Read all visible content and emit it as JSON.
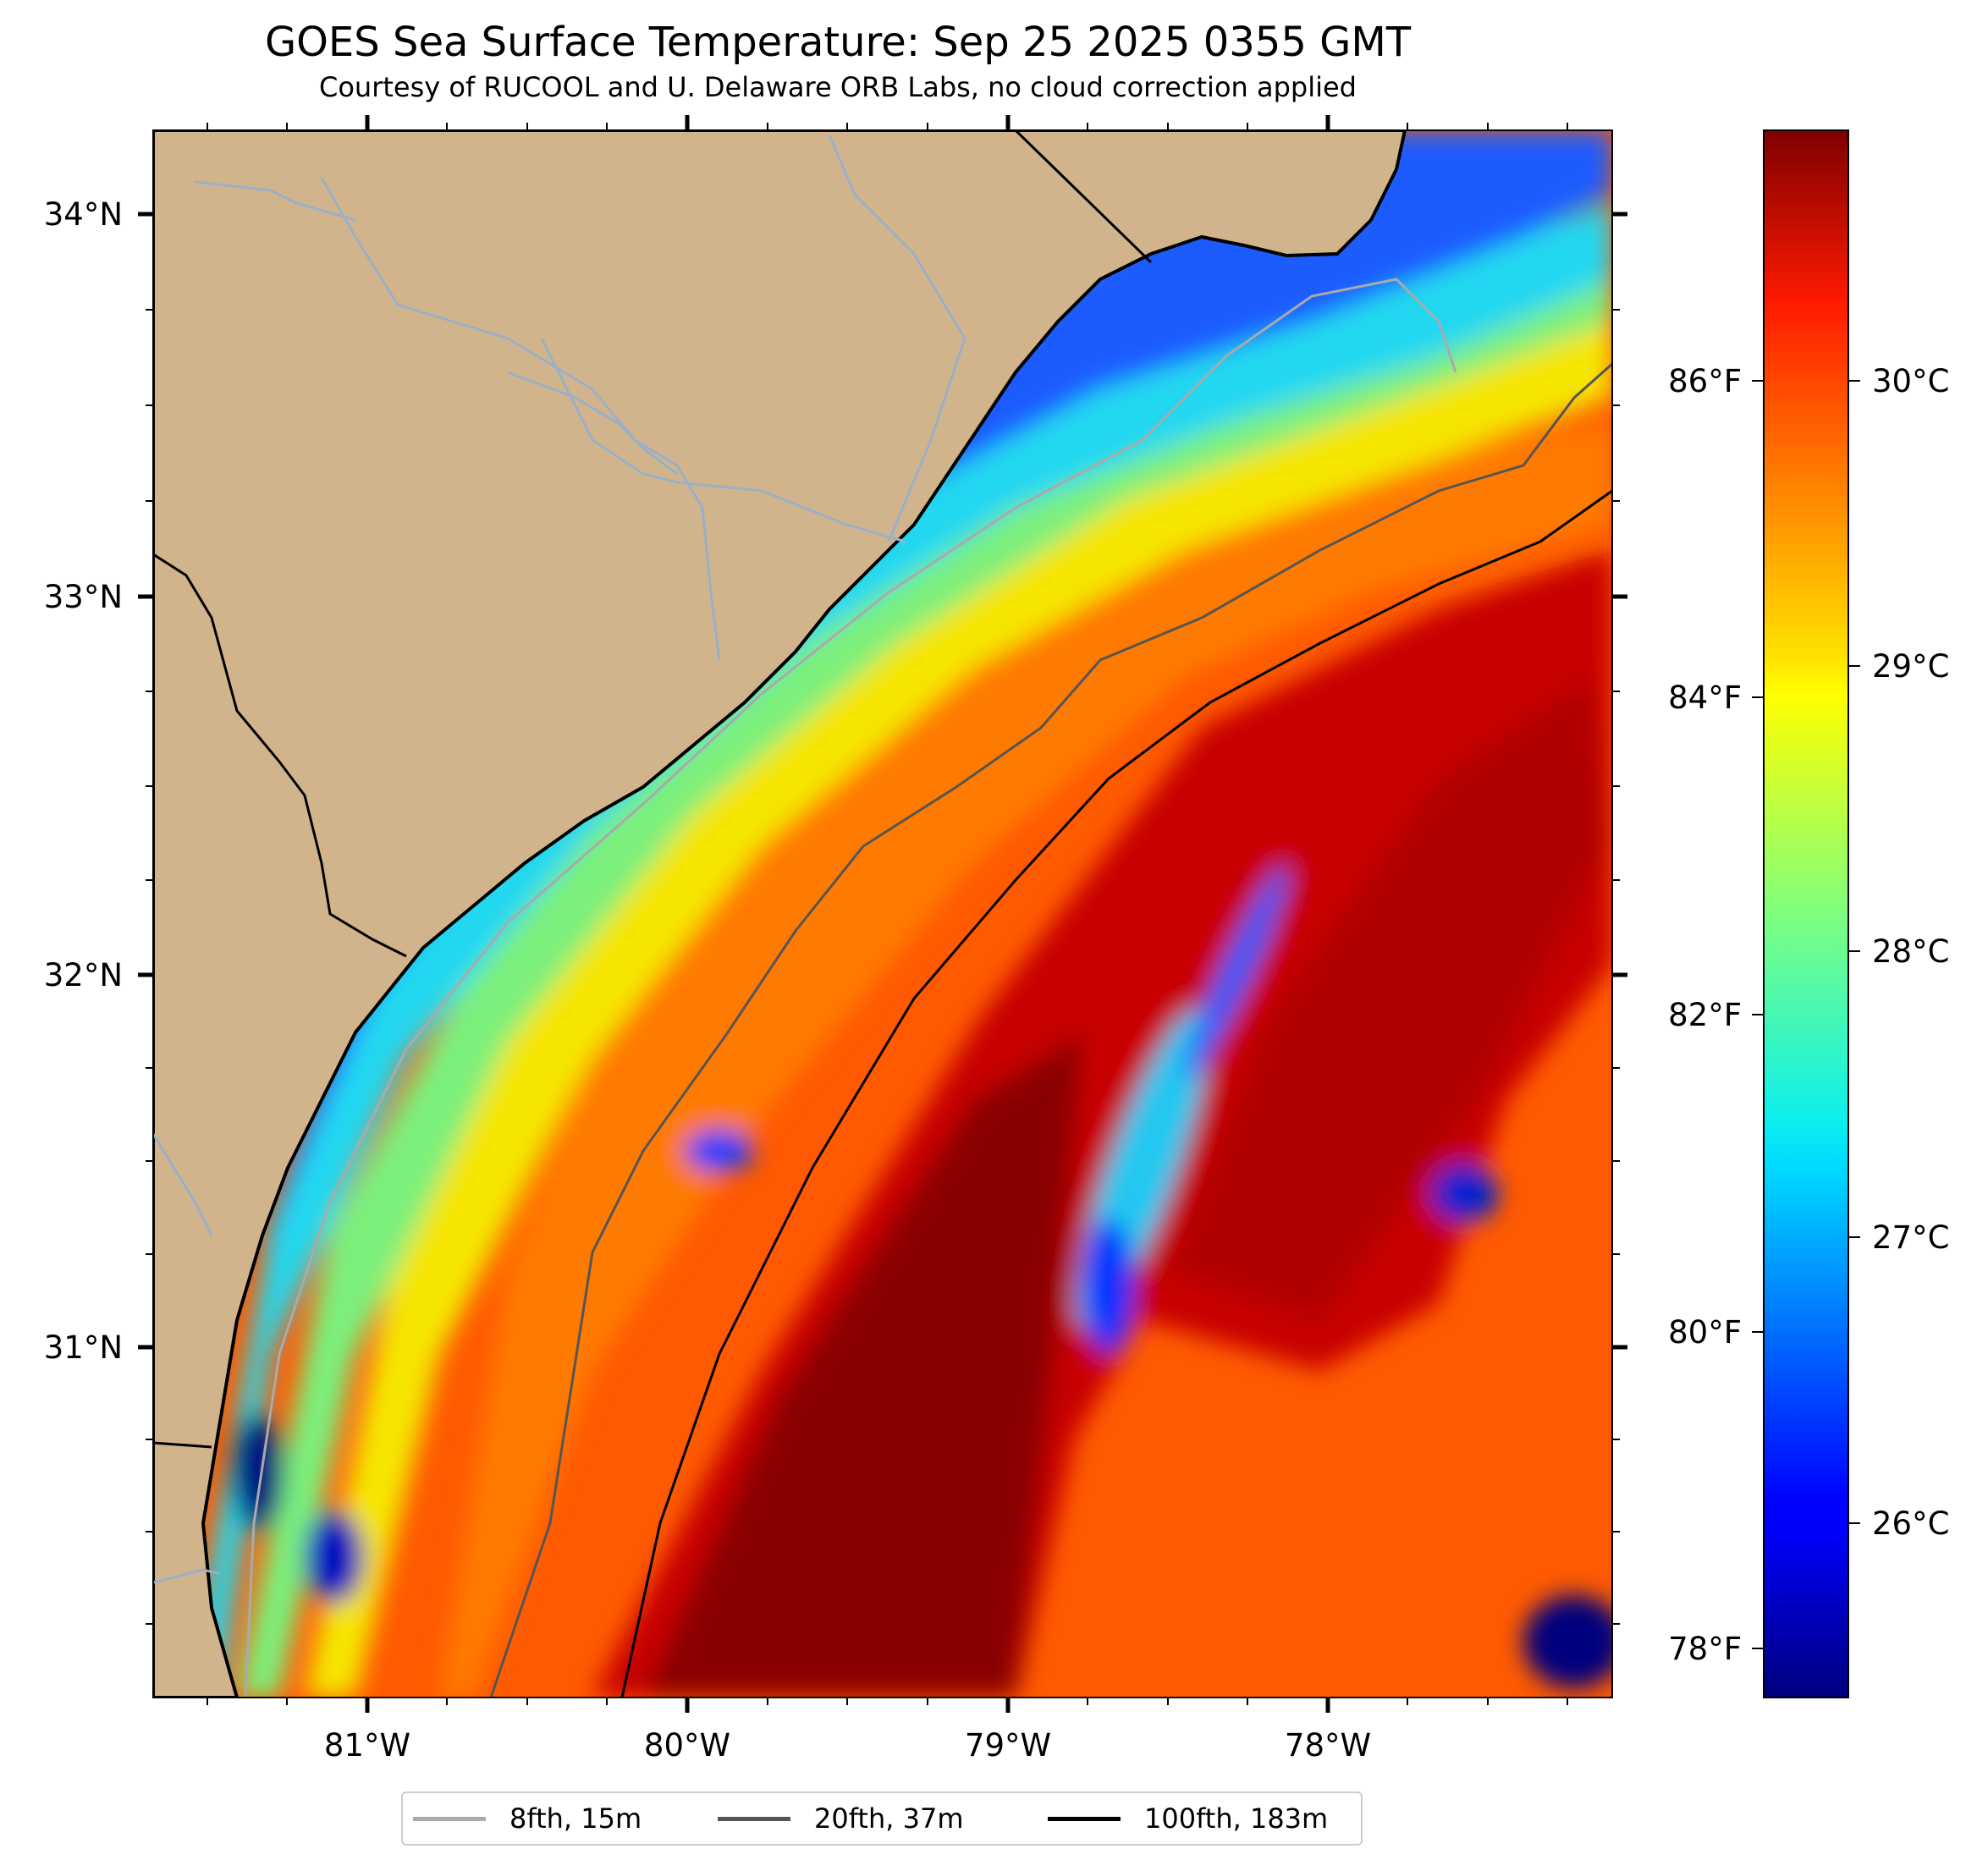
{
  "title": "GOES Sea Surface Temperature: Sep 25 2025 0355 GMT",
  "subtitle": "Courtesy of RUCOOL and U. Delaware ORB Labs, no cloud correction applied",
  "map": {
    "lon_range": [
      -81.67,
      -77.1
    ],
    "lat_range": [
      30.1,
      34.22
    ],
    "lon_ticks": [
      "81°W",
      "80°W",
      "79°W",
      "78°W"
    ],
    "lat_ticks": [
      "34°N",
      "33°N",
      "32°N",
      "31°N"
    ],
    "land_color": "#d2b48c",
    "nodata_color": "#ffffff",
    "features": [
      "coastline",
      "rivers",
      "state-boundaries",
      "sst-field"
    ]
  },
  "colorbar": {
    "colormap": "jet",
    "celsius_ticks": [
      "26°C",
      "27°C",
      "28°C",
      "29°C",
      "30°C"
    ],
    "fahrenheit_ticks": [
      "78°F",
      "80°F",
      "82°F",
      "84°F",
      "86°F"
    ],
    "range_celsius": [
      25.4,
      30.9
    ]
  },
  "legend": {
    "items": [
      {
        "label": "8fth, 15m",
        "color": "#aaaaaa"
      },
      {
        "label": "20fth, 37m",
        "color": "#555555"
      },
      {
        "label": "100fth, 183m",
        "color": "#000000"
      }
    ]
  }
}
